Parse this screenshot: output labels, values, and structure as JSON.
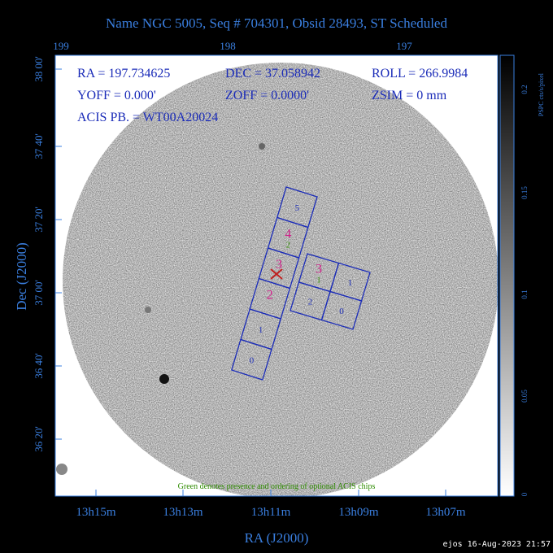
{
  "title": "Name NGC 5005, Seq # 704301, Obsid 28493, ST Scheduled",
  "top_axis": {
    "ticks": [
      "199",
      "198",
      "197"
    ]
  },
  "left_axis": {
    "label": "Dec (J2000)",
    "ticks": [
      "38 00'",
      "37 40'",
      "37 20'",
      "37 00'",
      "36 40'",
      "36 20'"
    ]
  },
  "bottom_axis": {
    "label": "RA (J2000)",
    "ticks": [
      "13h15m",
      "13h13m",
      "13h11m",
      "13h09m",
      "13h07m"
    ]
  },
  "info": {
    "ra": "RA = 197.734625",
    "dec": "DEC = 37.058942",
    "roll": "ROLL = 266.9984",
    "yoff": "YOFF = 0.000'",
    "zoff": "ZOFF = 0.0000'",
    "zsim": "ZSIM = 0 mm",
    "acis": "ACIS PB. = WT00A20024"
  },
  "colorbar": {
    "label": "PSPC cts/s/pixel",
    "ticks": [
      "0.2",
      "0.15",
      "0.1",
      "0.05",
      "0"
    ]
  },
  "s_array": [
    {
      "label": "5",
      "color": "#1a2bb8"
    },
    {
      "label": "4",
      "color": "#d0208a",
      "optional": "2"
    },
    {
      "label": "3",
      "color": "#d0208a"
    },
    {
      "label": "2",
      "color": "#d0208a"
    },
    {
      "label": "1",
      "color": "#1a2bb8"
    },
    {
      "label": "0",
      "color": "#1a2bb8"
    }
  ],
  "i_array": [
    {
      "label": "3",
      "color": "#d0208a",
      "optional": "1"
    },
    {
      "label": "1",
      "color": "#1a2bb8"
    },
    {
      "label": "2",
      "color": "#1a2bb8"
    },
    {
      "label": "0",
      "color": "#1a2bb8"
    }
  ],
  "note": "Green denotes presence and ordering of optional ACIS chips",
  "footer": "ejos 16-Aug-2023 21:57"
}
